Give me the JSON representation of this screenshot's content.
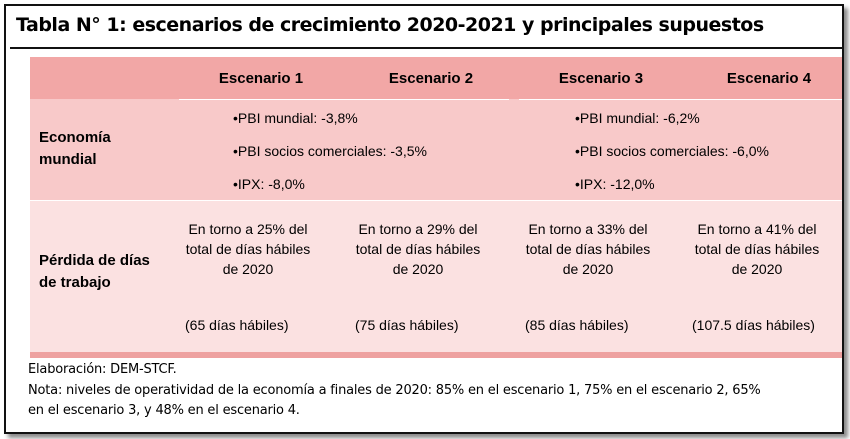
{
  "title": "Tabla N° 1: escenarios de crecimiento 2020-2021 y principales supuestos",
  "headers": [
    "Escenario 1",
    "Escenario 2",
    "Escenario 3",
    "Escenario 4"
  ],
  "rows": {
    "economia": {
      "label_line1": "Economía",
      "label_line2": "mundial",
      "group_a": [
        "•PBI mundial: -3,8%",
        "•PBI socios comerciales: -3,5%",
        "•IPX: -8,0%"
      ],
      "group_b": [
        "•PBI mundial: -6,2%",
        "•PBI socios comerciales: -6,0%",
        "•IPX: -12,0%"
      ]
    },
    "perdida": {
      "label_line1": "Pérdida de días",
      "label_line2": "de trabajo",
      "cells": [
        {
          "l1": "En torno a 25% del",
          "l2": "total de días hábiles",
          "l3": "de 2020",
          "days": "(65 días hábiles)"
        },
        {
          "l1": "En torno a 29% del",
          "l2": "total de días hábiles",
          "l3": "de 2020",
          "days": "(75 días hábiles)"
        },
        {
          "l1": "En torno a 33% del",
          "l2": "total de días hábiles",
          "l3": "de 2020",
          "days": "(85 días hábiles)"
        },
        {
          "l1": "En torno a 41% del",
          "l2": "total de días hábiles",
          "l3": "de 2020",
          "days": "(107.5 días hábiles)"
        }
      ]
    }
  },
  "footer": {
    "elaboracion": "Elaboración: DEM-STCF.",
    "nota_line1": "Nota: niveles de operatividad de la economía a finales de 2020: 85% en el escenario 1, 75% en el escenario 2, 65%",
    "nota_line2": "en el escenario 3, y 48% en el escenario 4."
  }
}
